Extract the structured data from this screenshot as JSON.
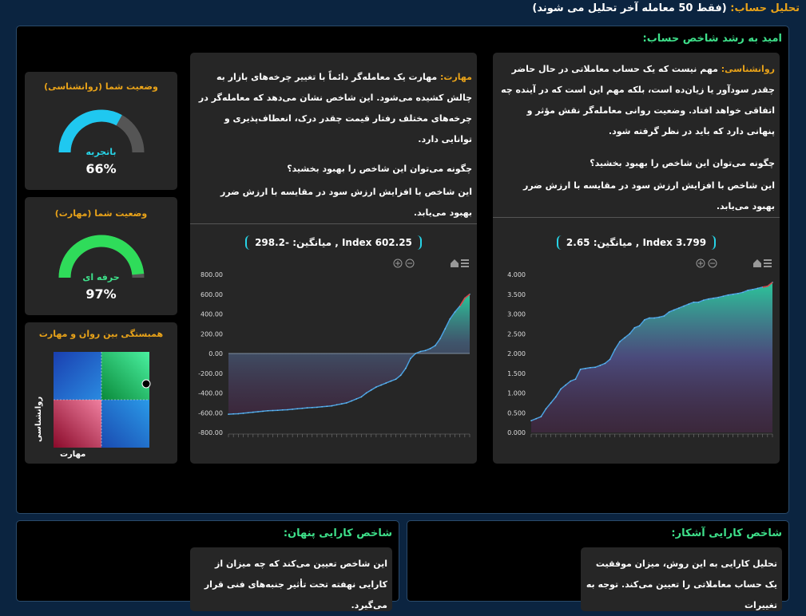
{
  "header": {
    "label": "تحلیل حساب:",
    "note": "(فقط 50 معامله آخر تحلیل می شوند)"
  },
  "main": {
    "title": "امید به رشد شاخص حساب:",
    "psych_panel": {
      "label": "روانشناسی:",
      "text": "مهم نیست که یک حساب معاملاتی در حال حاضر چقدر سودآور یا زیان‌ده است، بلکه مهم این است که در آینده چه اتفاقی خواهد افتاد. وضعیت روانی معامله‌گر نقش مؤثر و پنهانی دارد که باید در نظر گرفته شود.",
      "how_title": "چگونه می‌توان این شاخص را بهبود بخشید؟",
      "how_text": "این شاخص با افزایش ارزش سود در مقایسه با ارزش ضرر بهبود می‌یابد.",
      "stats": "میانگین: 2.65 , Index 3.799"
    },
    "skill_panel": {
      "label": "مهارت:",
      "text": "مهارت یک معامله‌گر دائماً با تغییر چرخه‌های بازار به چالش کشیده می‌شود. این شاخص نشان می‌دهد که معامله‌گر در چرخه‌های مختلف رفتار قیمت چقدر درک، انعطاف‌پذیری و توانایی دارد.",
      "how_title": "چگونه می‌توان این شاخص را بهبود بخشید؟",
      "how_text": "این شاخص با افزایش ارزش سود در مقایسه با ارزش ضرر بهبود می‌یابد.",
      "stats": "میانگین: -298.2 , Index 602.25"
    },
    "gauge_psych": {
      "title": "وضعیت شما (روانشناسی)",
      "label": "باتجربه",
      "pct": "66%",
      "value": 0.66,
      "color": "#1fc8f0"
    },
    "gauge_skill": {
      "title": "وضعیت شما (مهارت)",
      "label": "حرفه ای",
      "pct": "97%",
      "value": 0.97,
      "color": "#2fdc5a"
    },
    "correlation": {
      "title": "همبستگی بین روان و مهارت",
      "y_label": "روانشناسی",
      "x_label": "مهارت"
    }
  },
  "bottom_left": {
    "title": "شاخص کارایی پنهان:",
    "text": "این شاخص تعیین می‌کند که چه میزان از کارایی نهفته تحت تأثیر جنبه‌های فنی قرار می‌گیرد."
  },
  "bottom_right": {
    "title": "شاخص کارایی آشکار:",
    "text": "تحلیل کارایی به این روش، میزان موفقیت یک حساب معاملاتی را تعیین می‌کند. توجه به تغییرات"
  },
  "colors": {
    "gold": "#e9a319",
    "green": "#3ee08a",
    "cyan": "#27d3e6"
  },
  "chart_data": [
    {
      "type": "area",
      "series": [
        {
          "values": [
            0.3,
            0.35,
            0.4,
            0.6,
            0.75,
            0.9,
            1.1,
            1.2,
            1.3,
            1.35,
            1.6,
            1.62,
            1.64,
            1.65,
            1.7,
            1.75,
            1.85,
            2.1,
            2.3,
            2.4,
            2.5,
            2.65,
            2.7,
            2.85,
            2.9,
            2.9,
            2.92,
            2.95,
            3.05,
            3.1,
            3.15,
            3.2,
            3.25,
            3.3,
            3.3,
            3.35,
            3.38,
            3.4,
            3.42,
            3.45,
            3.48,
            3.5,
            3.52,
            3.55,
            3.6,
            3.62,
            3.65,
            3.68,
            3.7,
            3.8
          ]
        }
      ],
      "ylim": [
        0,
        4
      ],
      "yticks": [
        "0.000",
        "0.500",
        "1.000",
        "1.500",
        "2.000",
        "2.500",
        "3.000",
        "3.500",
        "4.000"
      ]
    },
    {
      "type": "area",
      "series": [
        {
          "values": [
            -615,
            -612,
            -610,
            -605,
            -600,
            -595,
            -590,
            -585,
            -580,
            -578,
            -575,
            -572,
            -570,
            -565,
            -560,
            -555,
            -550,
            -548,
            -545,
            -540,
            -535,
            -530,
            -520,
            -510,
            -500,
            -480,
            -460,
            -440,
            -400,
            -370,
            -340,
            -320,
            -300,
            -280,
            -260,
            -220,
            -150,
            -50,
            0,
            20,
            30,
            50,
            80,
            150,
            250,
            350,
            420,
            480,
            560,
            600
          ]
        }
      ],
      "ylim": [
        -800,
        800
      ],
      "yticks": [
        "-800.00",
        "-600.00",
        "-400.00",
        "-200.00",
        "0.00",
        "200.00",
        "400.00",
        "600.00",
        "800.00"
      ]
    }
  ]
}
